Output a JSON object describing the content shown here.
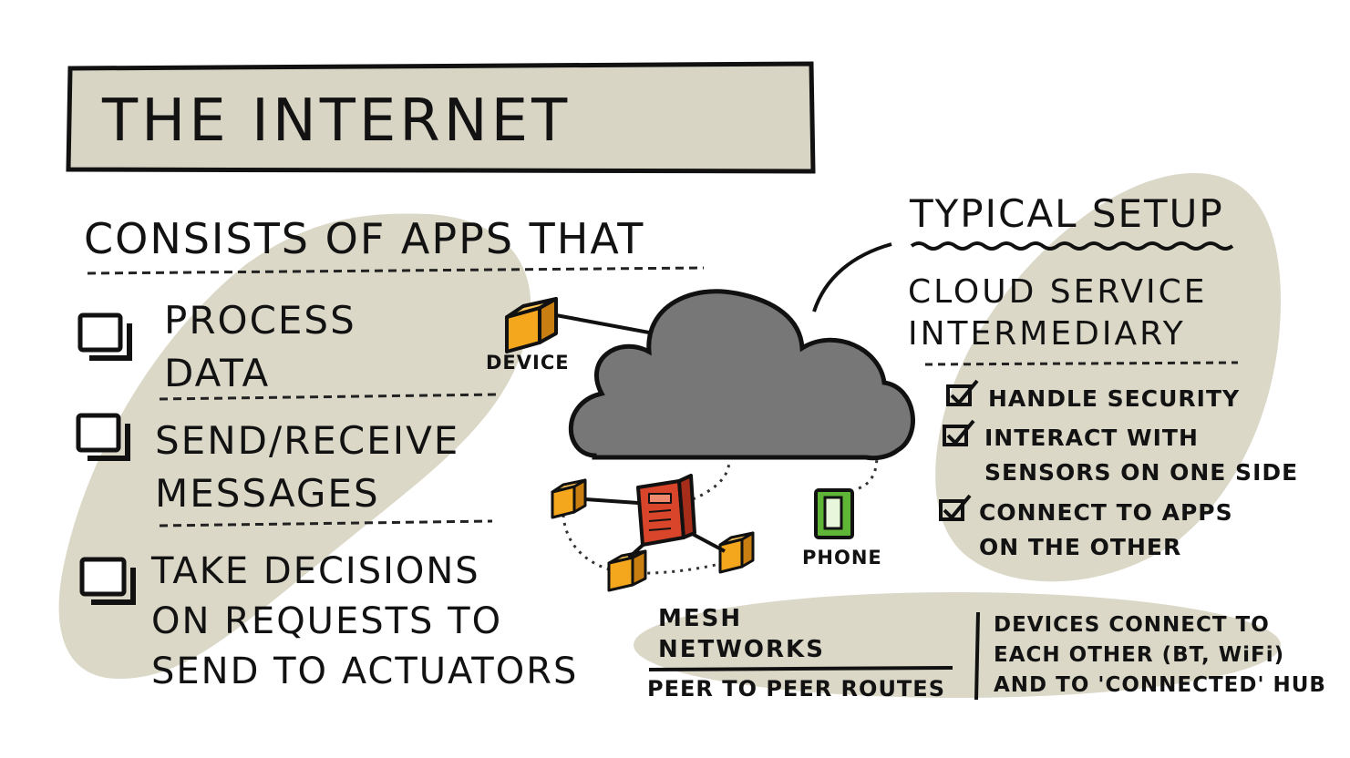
{
  "title": "THE INTERNET",
  "apps": {
    "heading": "CONSISTS OF APPS THAT",
    "items": [
      {
        "label": "PROCESS\nDATA"
      },
      {
        "label": "SEND/RECEIVE\nMESSAGES"
      },
      {
        "label": "TAKE DECISIONS\nON REQUESTS TO\nSEND TO ACTUATORS"
      }
    ]
  },
  "diagram": {
    "device_label": "DEVICE",
    "phone_label": "PHONE"
  },
  "setup": {
    "heading": "TYPICAL SETUP",
    "role": "CLOUD SERVICE\nINTERMEDIARY",
    "duties": [
      {
        "label": "HANDLE SECURITY"
      },
      {
        "label": "INTERACT WITH\nSENSORS ON ONE SIDE"
      },
      {
        "label": "CONNECT TO APPS\nON THE OTHER"
      }
    ]
  },
  "mesh": {
    "label": "MESH\nNETWORKS",
    "subtitle": "PEER TO PEER ROUTES",
    "description": "DEVICES CONNECT TO\nEACH OTHER (BT, WiFi)\nAND TO 'CONNECTED' HUB"
  },
  "colors": {
    "title_box": "#d9d5c5",
    "blob": "#dbd8c8",
    "cloud": "#777777",
    "cube": "#f4a71c",
    "hub": "#d9452b",
    "phone": "#5fb536"
  }
}
